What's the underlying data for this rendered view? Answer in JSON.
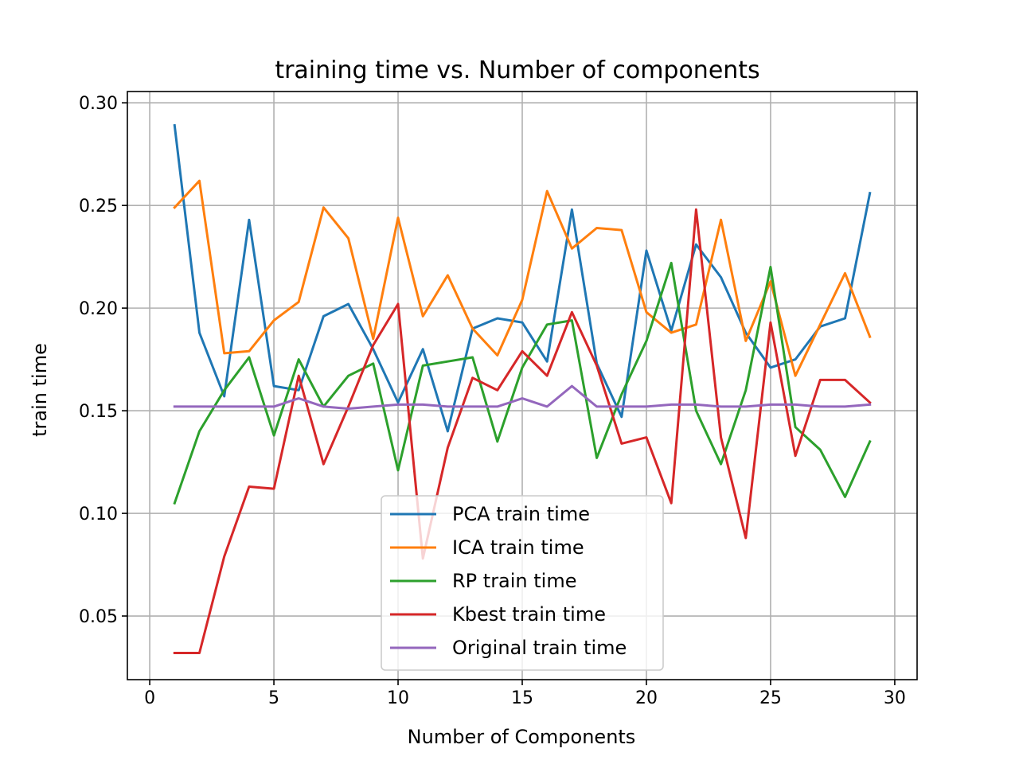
{
  "chart_data": {
    "type": "line",
    "title": "training time  vs. Number of components",
    "xlabel": "Number of Components",
    "ylabel": "train time",
    "xlim": [
      -0.9,
      30.9
    ],
    "ylim": [
      0.019,
      0.3055
    ],
    "xticks": [
      0,
      5,
      10,
      15,
      20,
      25,
      30
    ],
    "yticks": [
      0.05,
      0.1,
      0.15,
      0.2,
      0.25,
      0.3
    ],
    "xtick_labels": [
      "0",
      "5",
      "10",
      "15",
      "20",
      "25",
      "30"
    ],
    "ytick_labels": [
      "0.05",
      "0.10",
      "0.15",
      "0.20",
      "0.25",
      "0.30"
    ],
    "grid": true,
    "legend_position": "lower center",
    "x": [
      1,
      2,
      3,
      4,
      5,
      6,
      7,
      8,
      9,
      10,
      11,
      12,
      13,
      14,
      15,
      16,
      17,
      18,
      19,
      20,
      21,
      22,
      23,
      24,
      25,
      26,
      27,
      28,
      29
    ],
    "series": [
      {
        "name": "PCA train time",
        "color": "#1f77b4",
        "values": [
          0.289,
          0.188,
          0.157,
          0.243,
          0.162,
          0.16,
          0.196,
          0.202,
          0.18,
          0.154,
          0.18,
          0.14,
          0.19,
          0.195,
          0.193,
          0.174,
          0.248,
          0.173,
          0.147,
          0.228,
          0.189,
          0.231,
          0.215,
          0.188,
          0.171,
          0.175,
          0.191,
          0.195,
          0.256
        ]
      },
      {
        "name": "ICA train time",
        "color": "#ff7f0e",
        "values": [
          0.249,
          0.262,
          0.178,
          0.179,
          0.194,
          0.203,
          0.249,
          0.234,
          0.185,
          0.244,
          0.196,
          0.216,
          0.19,
          0.177,
          0.204,
          0.257,
          0.229,
          0.239,
          0.238,
          0.198,
          0.188,
          0.192,
          0.243,
          0.184,
          0.213,
          0.167,
          0.192,
          0.217,
          0.186
        ]
      },
      {
        "name": "RP train time",
        "color": "#2ca02c",
        "values": [
          0.105,
          0.14,
          0.16,
          0.176,
          0.138,
          0.175,
          0.152,
          0.167,
          0.173,
          0.121,
          0.172,
          0.174,
          0.176,
          0.135,
          0.171,
          0.192,
          0.194,
          0.127,
          0.158,
          0.184,
          0.222,
          0.15,
          0.124,
          0.16,
          0.22,
          0.142,
          0.131,
          0.108,
          0.135
        ]
      },
      {
        "name": "Kbest train time",
        "color": "#d62728",
        "values": [
          0.032,
          0.032,
          0.079,
          0.113,
          0.112,
          0.167,
          0.124,
          0.152,
          0.182,
          0.202,
          0.078,
          0.132,
          0.166,
          0.16,
          0.179,
          0.167,
          0.198,
          0.172,
          0.134,
          0.137,
          0.105,
          0.248,
          0.137,
          0.088,
          0.193,
          0.128,
          0.165,
          0.165,
          0.154
        ]
      },
      {
        "name": "Original train time",
        "color": "#9467bd",
        "values": [
          0.152,
          0.152,
          0.152,
          0.152,
          0.152,
          0.156,
          0.152,
          0.151,
          0.152,
          0.153,
          0.153,
          0.152,
          0.152,
          0.152,
          0.156,
          0.152,
          0.162,
          0.152,
          0.152,
          0.152,
          0.153,
          0.153,
          0.152,
          0.152,
          0.153,
          0.153,
          0.152,
          0.152,
          0.153
        ]
      }
    ]
  }
}
